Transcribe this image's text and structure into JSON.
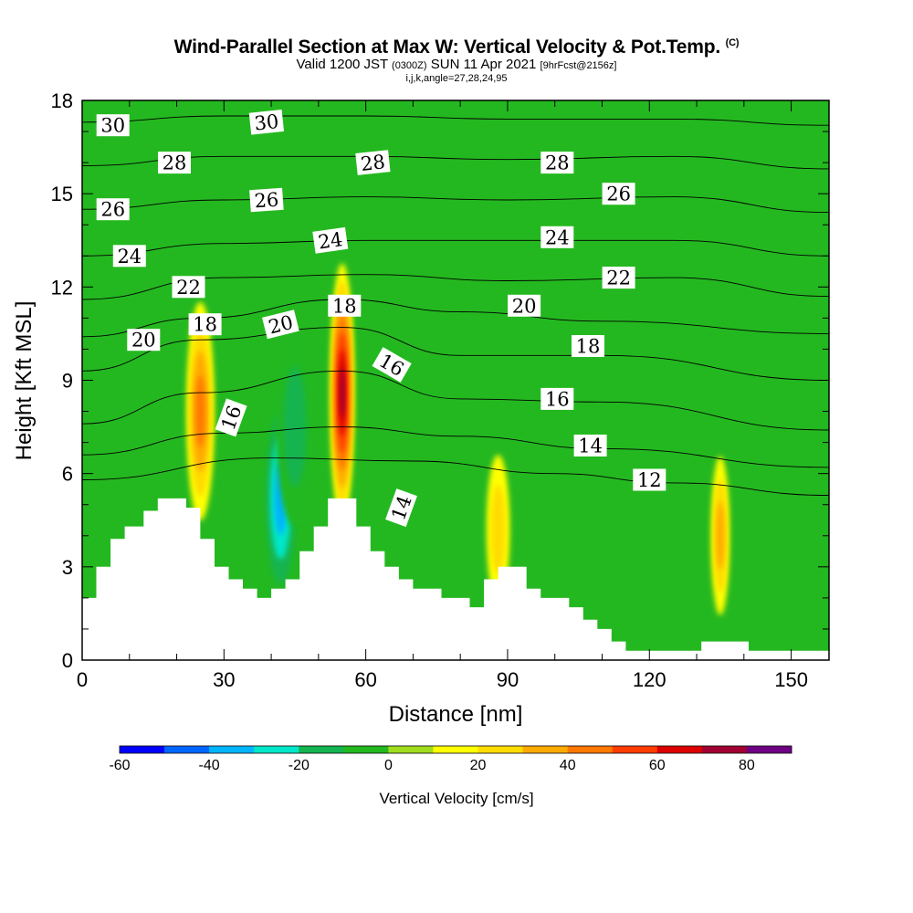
{
  "header": {
    "title": "Wind-Parallel Section at Max W: Vertical Velocity & Pot.Temp.",
    "copyright": "(C)",
    "valid_prefix": "Valid 1200 JST",
    "valid_utc": "(0300Z)",
    "valid_date": "SUN 11 Apr 2021",
    "forecast": "[9hrFcst@2156z]",
    "indices": "i,j,k,angle=27,28,24,95"
  },
  "chart_data": {
    "type": "contour",
    "xlabel": "Distance [nm]",
    "ylabel": "Height [Kft MSL]",
    "xlim": [
      0,
      158
    ],
    "ylim": [
      0,
      18
    ],
    "x_ticks": [
      0,
      30,
      60,
      90,
      120,
      150
    ],
    "y_ticks": [
      0,
      3,
      6,
      9,
      12,
      15,
      18
    ],
    "colorbar": {
      "label": "Vertical Velocity [cm/s]",
      "min": -60,
      "max": 90,
      "step": 10,
      "ticks": [
        -60,
        -40,
        -20,
        0,
        20,
        40,
        60,
        80
      ],
      "colors": [
        "#0000ff",
        "#0066ff",
        "#00b4ff",
        "#00e6c8",
        "#14b450",
        "#24b820",
        "#a0dc1e",
        "#ffff00",
        "#ffdc00",
        "#ffaa00",
        "#ff7800",
        "#ff3c00",
        "#dc0000",
        "#a00032",
        "#6e0082"
      ]
    },
    "terrain_kft": [
      [
        0,
        2.0
      ],
      [
        3,
        2.0
      ],
      [
        3,
        3.0
      ],
      [
        6,
        3.0
      ],
      [
        6,
        3.9
      ],
      [
        9,
        3.9
      ],
      [
        9,
        4.3
      ],
      [
        13,
        4.3
      ],
      [
        13,
        4.8
      ],
      [
        16,
        4.8
      ],
      [
        16,
        5.2
      ],
      [
        22,
        5.2
      ],
      [
        22,
        4.9
      ],
      [
        25,
        4.9
      ],
      [
        25,
        3.9
      ],
      [
        28,
        3.9
      ],
      [
        28,
        3.0
      ],
      [
        31,
        3.0
      ],
      [
        31,
        2.6
      ],
      [
        34,
        2.6
      ],
      [
        34,
        2.3
      ],
      [
        37,
        2.3
      ],
      [
        37,
        2.0
      ],
      [
        40,
        2.0
      ],
      [
        40,
        2.3
      ],
      [
        43,
        2.3
      ],
      [
        43,
        2.6
      ],
      [
        46,
        2.6
      ],
      [
        46,
        3.5
      ],
      [
        49,
        3.5
      ],
      [
        49,
        4.3
      ],
      [
        52,
        4.3
      ],
      [
        52,
        5.2
      ],
      [
        58,
        5.2
      ],
      [
        58,
        4.3
      ],
      [
        61,
        4.3
      ],
      [
        61,
        3.5
      ],
      [
        64,
        3.5
      ],
      [
        64,
        3.0
      ],
      [
        67,
        3.0
      ],
      [
        67,
        2.6
      ],
      [
        70,
        2.6
      ],
      [
        70,
        2.3
      ],
      [
        76,
        2.3
      ],
      [
        76,
        2.0
      ],
      [
        82,
        2.0
      ],
      [
        82,
        1.7
      ],
      [
        85,
        1.7
      ],
      [
        85,
        2.6
      ],
      [
        88,
        2.6
      ],
      [
        88,
        3.0
      ],
      [
        94,
        3.0
      ],
      [
        94,
        2.3
      ],
      [
        97,
        2.3
      ],
      [
        97,
        2.0
      ],
      [
        103,
        2.0
      ],
      [
        103,
        1.7
      ],
      [
        106,
        1.7
      ],
      [
        106,
        1.3
      ],
      [
        109,
        1.3
      ],
      [
        109,
        1.0
      ],
      [
        112,
        1.0
      ],
      [
        112,
        0.6
      ],
      [
        115,
        0.6
      ],
      [
        115,
        0.3
      ],
      [
        131,
        0.3
      ],
      [
        131,
        0.6
      ],
      [
        141,
        0.6
      ],
      [
        141,
        0.3
      ],
      [
        158,
        0.3
      ]
    ],
    "updrafts": [
      {
        "x": 25,
        "y": 8.0,
        "rx": 3,
        "ry": 2.2,
        "w": 45
      },
      {
        "x": 55,
        "y": 8.6,
        "rx": 2.6,
        "ry": 2.6,
        "w": 75
      },
      {
        "x": 88,
        "y": 4.2,
        "rx": 2.5,
        "ry": 1.5,
        "w": 22
      },
      {
        "x": 135,
        "y": 4.0,
        "rx": 2,
        "ry": 1.6,
        "w": 30
      }
    ],
    "downdrafts": [
      {
        "x": 42,
        "y": 5.2,
        "rx": 4,
        "ry": 2.2,
        "w": -45
      },
      {
        "x": 45,
        "y": 7.5,
        "rx": 4,
        "ry": 2.0,
        "w": -22
      }
    ],
    "isentropes": [
      {
        "label": "12",
        "points": [
          [
            0,
            5.8
          ],
          [
            40,
            6.5
          ],
          [
            70,
            6.4
          ],
          [
            100,
            6.0
          ],
          [
            125,
            5.7
          ],
          [
            158,
            5.3
          ]
        ]
      },
      {
        "label": "14",
        "points": [
          [
            0,
            6.6
          ],
          [
            30,
            7.3
          ],
          [
            55,
            7.5
          ],
          [
            80,
            7.2
          ],
          [
            110,
            6.8
          ],
          [
            158,
            6.2
          ]
        ]
      },
      {
        "label": "16",
        "points": [
          [
            0,
            7.6
          ],
          [
            25,
            8.6
          ],
          [
            55,
            9.3
          ],
          [
            80,
            8.4
          ],
          [
            110,
            8.3
          ],
          [
            158,
            7.4
          ]
        ]
      },
      {
        "label": "18",
        "points": [
          [
            0,
            9.3
          ],
          [
            25,
            10.3
          ],
          [
            55,
            10.7
          ],
          [
            80,
            9.8
          ],
          [
            110,
            9.8
          ],
          [
            158,
            9.0
          ]
        ]
      },
      {
        "label": "20",
        "points": [
          [
            0,
            10.4
          ],
          [
            25,
            11.0
          ],
          [
            55,
            11.6
          ],
          [
            80,
            11.2
          ],
          [
            110,
            10.9
          ],
          [
            158,
            10.5
          ]
        ]
      },
      {
        "label": "22",
        "points": [
          [
            0,
            11.6
          ],
          [
            30,
            12.3
          ],
          [
            60,
            12.4
          ],
          [
            90,
            12.2
          ],
          [
            125,
            12.3
          ],
          [
            158,
            11.7
          ]
        ]
      },
      {
        "label": "24",
        "points": [
          [
            0,
            13.0
          ],
          [
            30,
            13.4
          ],
          [
            60,
            13.5
          ],
          [
            90,
            13.5
          ],
          [
            125,
            13.5
          ],
          [
            158,
            13.0
          ]
        ]
      },
      {
        "label": "26",
        "points": [
          [
            0,
            14.5
          ],
          [
            30,
            14.8
          ],
          [
            60,
            14.9
          ],
          [
            90,
            14.8
          ],
          [
            125,
            14.9
          ],
          [
            158,
            14.4
          ]
        ]
      },
      {
        "label": "28",
        "points": [
          [
            0,
            15.9
          ],
          [
            30,
            16.2
          ],
          [
            60,
            16.2
          ],
          [
            90,
            16.1
          ],
          [
            125,
            16.2
          ],
          [
            158,
            15.8
          ]
        ]
      },
      {
        "label": "30",
        "points": [
          [
            0,
            17.3
          ],
          [
            30,
            17.5
          ],
          [
            60,
            17.5
          ],
          [
            90,
            17.4
          ],
          [
            125,
            17.4
          ],
          [
            158,
            17.2
          ]
        ]
      }
    ],
    "contour_labels": [
      {
        "text": "30",
        "x": 6.5,
        "y": 17.2,
        "angle": 0
      },
      {
        "text": "30",
        "x": 39,
        "y": 17.3,
        "angle": -6
      },
      {
        "text": "28",
        "x": 19.5,
        "y": 16.0,
        "angle": 0
      },
      {
        "text": "28",
        "x": 61.5,
        "y": 16.0,
        "angle": -6
      },
      {
        "text": "28",
        "x": 100.5,
        "y": 16.0,
        "angle": 0
      },
      {
        "text": "26",
        "x": 6.5,
        "y": 14.5,
        "angle": 0
      },
      {
        "text": "26",
        "x": 39,
        "y": 14.8,
        "angle": -4
      },
      {
        "text": "26",
        "x": 113.5,
        "y": 15.0,
        "angle": 0
      },
      {
        "text": "24",
        "x": 10,
        "y": 13.0,
        "angle": 0
      },
      {
        "text": "24",
        "x": 52.5,
        "y": 13.5,
        "angle": -8
      },
      {
        "text": "24",
        "x": 100.5,
        "y": 13.6,
        "angle": 0
      },
      {
        "text": "22",
        "x": 22.5,
        "y": 12.0,
        "angle": 0
      },
      {
        "text": "22",
        "x": 113.5,
        "y": 12.3,
        "angle": 0
      },
      {
        "text": "20",
        "x": 13,
        "y": 10.3,
        "angle": 0
      },
      {
        "text": "20",
        "x": 42,
        "y": 10.8,
        "angle": -14
      },
      {
        "text": "20",
        "x": 93.5,
        "y": 11.4,
        "angle": 0
      },
      {
        "text": "18",
        "x": 26,
        "y": 10.8,
        "angle": 0
      },
      {
        "text": "18",
        "x": 55.5,
        "y": 11.4,
        "angle": 0
      },
      {
        "text": "18",
        "x": 107,
        "y": 10.1,
        "angle": 0
      },
      {
        "text": "16",
        "x": 31.5,
        "y": 7.8,
        "angle": -70
      },
      {
        "text": "16",
        "x": 65.5,
        "y": 9.5,
        "angle": 30
      },
      {
        "text": "16",
        "x": 100.5,
        "y": 8.4,
        "angle": 0
      },
      {
        "text": "14",
        "x": 67.5,
        "y": 4.9,
        "angle": -70
      },
      {
        "text": "14",
        "x": 107.5,
        "y": 6.9,
        "angle": 0
      },
      {
        "text": "12",
        "x": 120,
        "y": 5.8,
        "angle": 0
      }
    ]
  }
}
